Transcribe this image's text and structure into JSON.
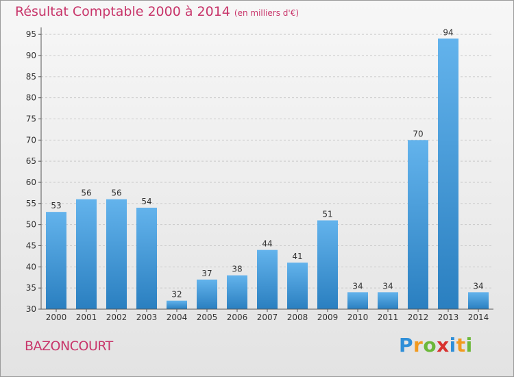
{
  "title": "Résultat Comptable 2000 à 2014",
  "subtitle": "(en milliers d'€)",
  "commune": "BAZONCOURT",
  "logo": {
    "letters": [
      "P",
      "r",
      "o",
      "x",
      "i",
      "t",
      "i"
    ],
    "colors": [
      "#2f8fd8",
      "#f29a1f",
      "#6cb83a",
      "#d8312e",
      "#2f8fd8",
      "#f29a1f",
      "#6cb83a"
    ]
  },
  "colors": {
    "bar_top": "#63b3ec",
    "bar_bottom": "#2a7fc0",
    "title": "#c8356a"
  },
  "chart_data": {
    "type": "bar",
    "categories": [
      "2000",
      "2001",
      "2002",
      "2003",
      "2004",
      "2005",
      "2006",
      "2007",
      "2008",
      "2009",
      "2010",
      "2011",
      "2012",
      "2013",
      "2014"
    ],
    "values": [
      53,
      56,
      56,
      54,
      32,
      37,
      38,
      44,
      41,
      51,
      34,
      34,
      70,
      94,
      34
    ],
    "yticks": [
      30,
      35,
      40,
      45,
      50,
      55,
      60,
      65,
      70,
      75,
      80,
      85,
      90,
      95
    ],
    "ylim": [
      30,
      96
    ],
    "grid": true
  }
}
